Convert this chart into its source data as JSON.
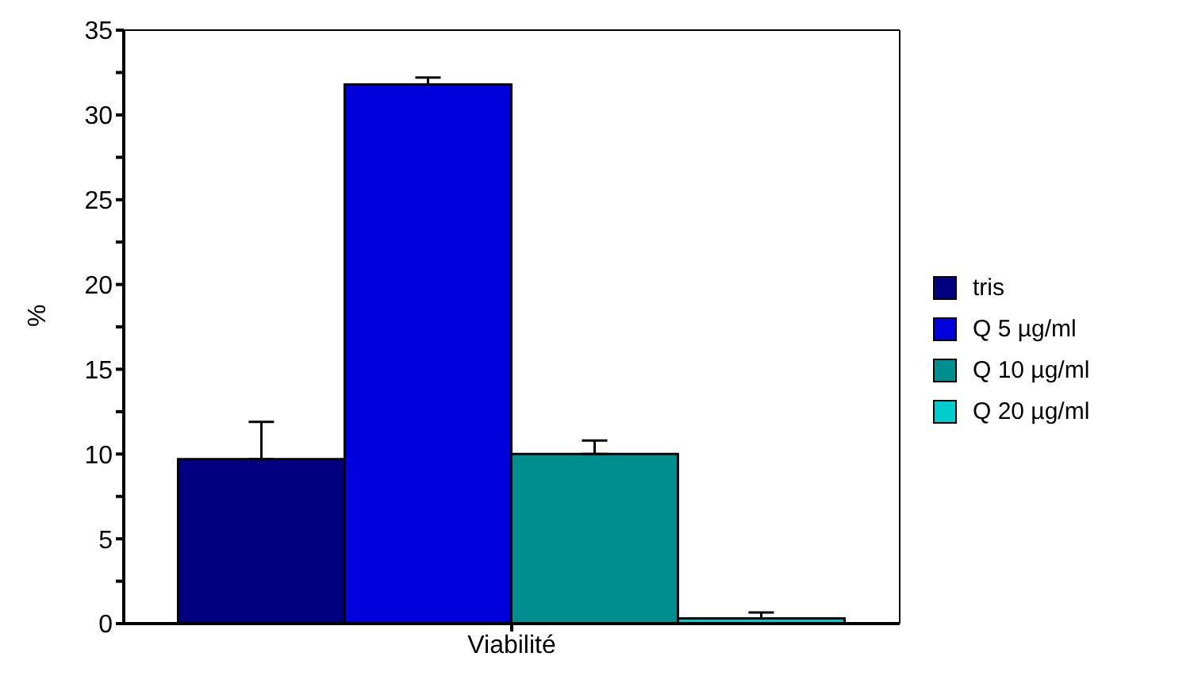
{
  "chart_data": {
    "type": "bar",
    "ylabel": "%",
    "categories": [
      "Viabilité"
    ],
    "series": [
      {
        "name": "tris",
        "color": "#000080",
        "values": [
          9.7
        ],
        "errors": [
          [
            9.7,
            11.9
          ]
        ]
      },
      {
        "name": "Q 5 µg/ml",
        "color": "#0000dd",
        "values": [
          31.8
        ],
        "errors": [
          [
            31.8,
            32.2
          ]
        ]
      },
      {
        "name": "Q 10 µg/ml",
        "color": "#008e8e",
        "values": [
          10
        ],
        "errors": [
          [
            10,
            10.8
          ]
        ]
      },
      {
        "name": "Q 20 µg/ml",
        "color": "#00cccc",
        "values": [
          0.3
        ],
        "errors": [
          [
            0.3,
            0.65
          ]
        ]
      }
    ],
    "ylim": [
      0,
      35
    ],
    "yticks": [
      0,
      {
        "value": 2.5,
        "label": null
      },
      5,
      {
        "value": 7.5,
        "label": null
      },
      10,
      {
        "value": 12.5,
        "label": null
      },
      15,
      {
        "value": 17.5,
        "label": null
      },
      20,
      {
        "value": 22.5,
        "label": null
      },
      25,
      {
        "value": 27.5,
        "label": null
      },
      30,
      {
        "value": 32.5,
        "label": null
      },
      35
    ],
    "grid": false,
    "legend": "right"
  }
}
